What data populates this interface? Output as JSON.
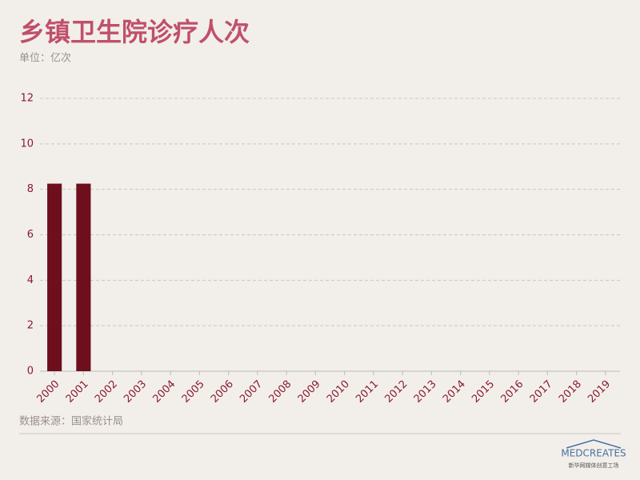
{
  "chart_data": {
    "type": "bar",
    "title": "乡镇卫生院诊疗人次",
    "subtitle": "单位：亿次",
    "source": "数据来源：国家统计局",
    "categories": [
      "2000",
      "2001",
      "2002",
      "2003",
      "2004",
      "2005",
      "2006",
      "2007",
      "2008",
      "2009",
      "2010",
      "2011",
      "2012",
      "2013",
      "2014",
      "2015",
      "2016",
      "2017",
      "2018",
      "2019"
    ],
    "values": [
      8.25,
      8.25,
      null,
      null,
      null,
      null,
      null,
      null,
      null,
      null,
      null,
      null,
      null,
      null,
      null,
      null,
      null,
      null,
      null,
      null
    ],
    "color": "#6e0f1e",
    "ylim": [
      0,
      12
    ],
    "yticks": [
      0,
      2,
      4,
      6,
      8,
      10,
      12
    ],
    "grid": true
  },
  "logo": {
    "text": "MEDCREATES",
    "caption": "新华网媒体创意工场"
  }
}
